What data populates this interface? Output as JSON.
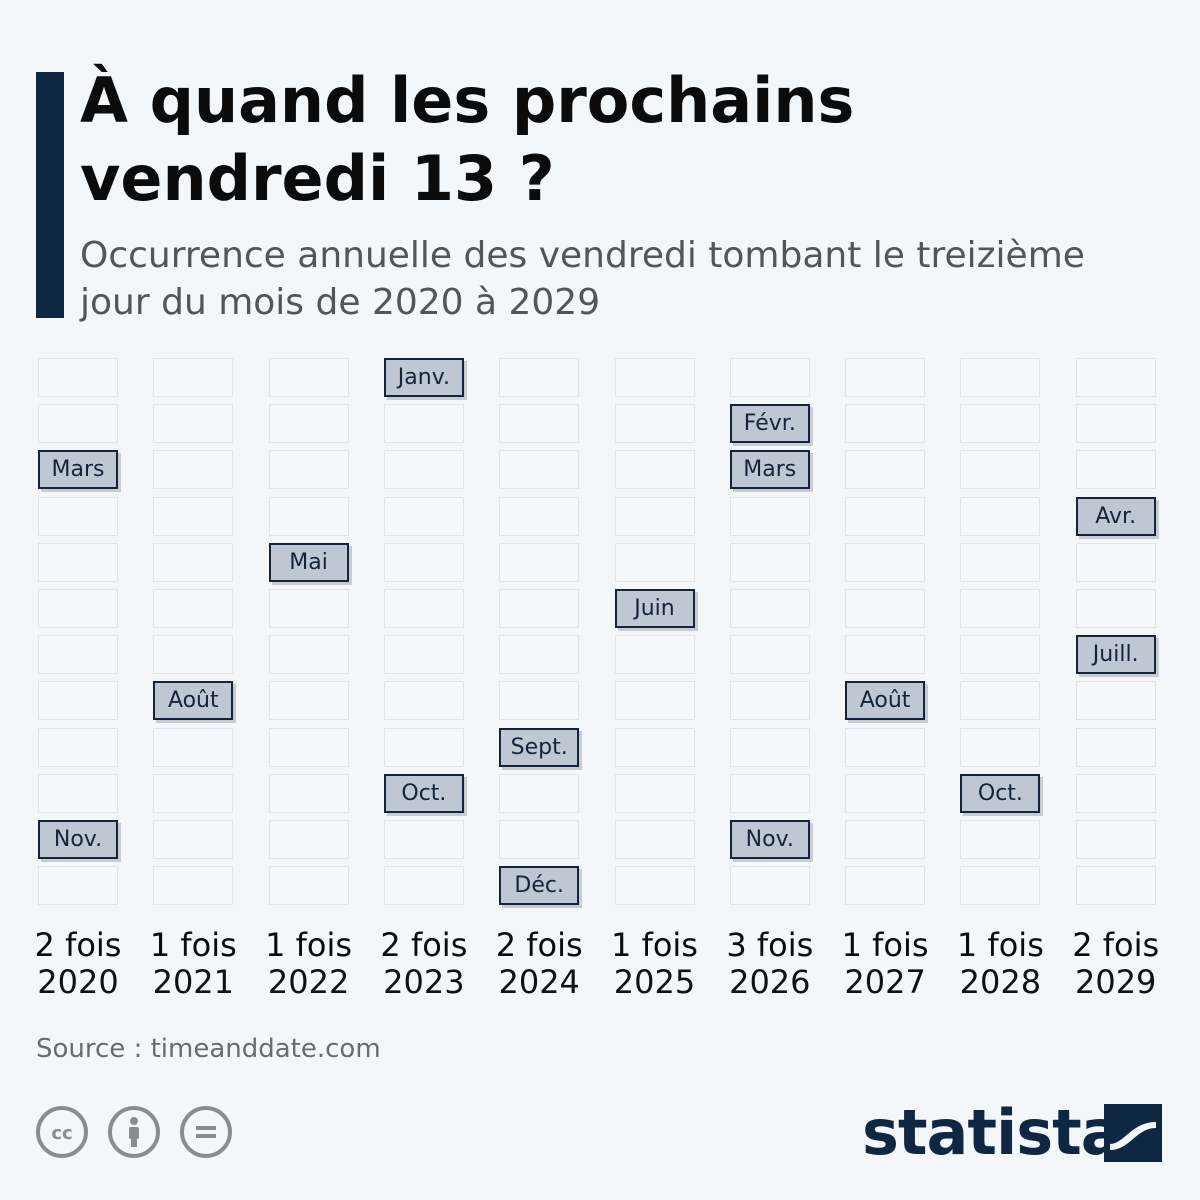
{
  "header": {
    "title": "À quand les prochains vendredi 13 ?",
    "subtitle": "Occurrence annuelle des vendredi tombant le treizième jour du mois de 2020 à 2029"
  },
  "chart_data": {
    "type": "table",
    "rows_are": "months January to December",
    "years": [
      "2020",
      "2021",
      "2022",
      "2023",
      "2024",
      "2025",
      "2026",
      "2027",
      "2028",
      "2029"
    ],
    "counts": [
      "2 fois",
      "1 fois",
      "1 fois",
      "2 fois",
      "2 fois",
      "1 fois",
      "3 fois",
      "1 fois",
      "1 fois",
      "2 fois"
    ],
    "occurrences": [
      {
        "year_index": 0,
        "month": 3,
        "label": "Mars"
      },
      {
        "year_index": 0,
        "month": 11,
        "label": "Nov."
      },
      {
        "year_index": 1,
        "month": 8,
        "label": "Août"
      },
      {
        "year_index": 2,
        "month": 5,
        "label": "Mai"
      },
      {
        "year_index": 3,
        "month": 1,
        "label": "Janv."
      },
      {
        "year_index": 3,
        "month": 10,
        "label": "Oct."
      },
      {
        "year_index": 4,
        "month": 9,
        "label": "Sept."
      },
      {
        "year_index": 4,
        "month": 12,
        "label": "Déc."
      },
      {
        "year_index": 5,
        "month": 6,
        "label": "Juin"
      },
      {
        "year_index": 6,
        "month": 2,
        "label": "Févr."
      },
      {
        "year_index": 6,
        "month": 3,
        "label": "Mars"
      },
      {
        "year_index": 6,
        "month": 11,
        "label": "Nov."
      },
      {
        "year_index": 7,
        "month": 8,
        "label": "Août"
      },
      {
        "year_index": 8,
        "month": 10,
        "label": "Oct."
      },
      {
        "year_index": 9,
        "month": 4,
        "label": "Avr."
      },
      {
        "year_index": 9,
        "month": 7,
        "label": "Juill."
      }
    ],
    "highlight_color": "#bfc7d2",
    "highlight_border": "#14243a"
  },
  "footer": {
    "source": "Source : timeanddate.com",
    "logo": "statista",
    "icons": [
      "creative-commons-icon",
      "attribution-icon",
      "no-derivatives-icon"
    ]
  },
  "colors": {
    "accent": "#0f2742",
    "background": "#f4f7fa"
  }
}
